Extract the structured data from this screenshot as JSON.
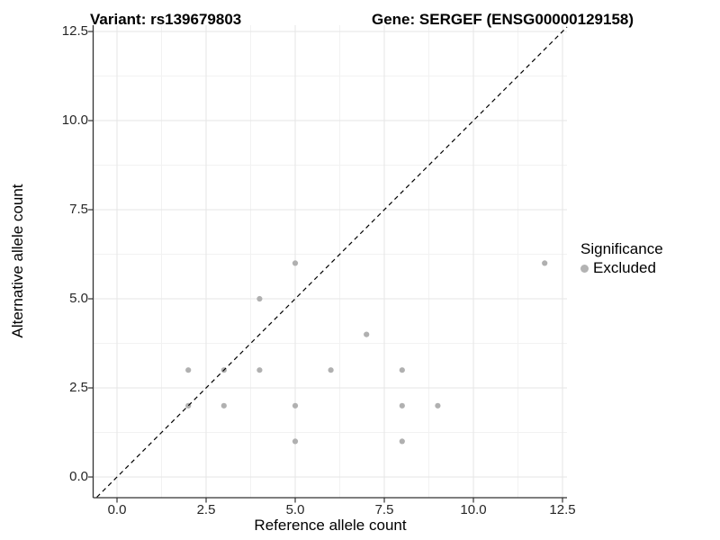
{
  "chart_data": {
    "type": "scatter",
    "title_left": "Variant: rs139679803",
    "title_right": "Gene: SERGEF (ENSG00000129158)",
    "xlabel": "Reference allele count",
    "ylabel": "Alternative allele count",
    "x_tick_labels": [
      "0.0",
      "2.5",
      "5.0",
      "7.5",
      "10.0",
      "12.5"
    ],
    "y_tick_labels": [
      "0.0",
      "2.5",
      "5.0",
      "7.5",
      "10.0",
      "12.5"
    ],
    "x_tick_values": [
      0,
      2.5,
      5,
      7.5,
      10,
      12.5
    ],
    "y_tick_values": [
      0,
      2.5,
      5,
      7.5,
      10,
      12.5
    ],
    "x_minor_values": [
      1.25,
      3.75,
      6.25,
      8.75,
      11.25
    ],
    "y_minor_values": [
      1.25,
      3.75,
      6.25,
      8.75,
      11.25
    ],
    "xlim": [
      -0.657,
      12.626
    ],
    "ylim": [
      -0.568,
      12.677
    ],
    "grid": true,
    "legend": {
      "title": "Significance",
      "position": "right",
      "items": [
        {
          "label": "Excluded",
          "color": "#b3b3b3"
        }
      ]
    },
    "series": [
      {
        "name": "Excluded",
        "color": "#b0b0b0",
        "points": [
          [
            2,
            2
          ],
          [
            2,
            3
          ],
          [
            3,
            2
          ],
          [
            3,
            3
          ],
          [
            4,
            3
          ],
          [
            4,
            5
          ],
          [
            5,
            1
          ],
          [
            5,
            2
          ],
          [
            5,
            6
          ],
          [
            6,
            3
          ],
          [
            7,
            4
          ],
          [
            8,
            1
          ],
          [
            8,
            2
          ],
          [
            8,
            3
          ],
          [
            9,
            2
          ],
          [
            12,
            6
          ]
        ]
      }
    ],
    "reference_line": {
      "type": "identity",
      "equation": "y = x",
      "style": "dashed",
      "color": "#000000"
    }
  },
  "colors": {
    "grid_major": "#e6e6e6",
    "grid_minor": "#f2f2f2",
    "axis_line": "#333333",
    "tick_mark": "#333333",
    "background": "#ffffff"
  }
}
